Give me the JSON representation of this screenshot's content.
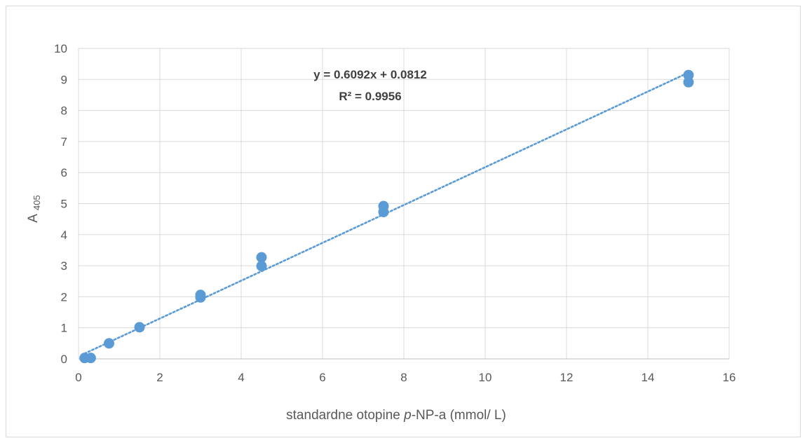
{
  "chart_data": {
    "type": "scatter",
    "title": "",
    "xlabel": {
      "before": "standardne otopine ",
      "italic": "p",
      "after": "-NP-a (mmol/ L)"
    },
    "ylabel": {
      "main": "A",
      "subscript": "405"
    },
    "xlim": [
      0,
      16
    ],
    "ylim": [
      0,
      10
    ],
    "x_ticks": [
      0,
      2,
      4,
      6,
      8,
      10,
      12,
      14,
      16
    ],
    "y_ticks": [
      0,
      1,
      2,
      3,
      4,
      5,
      6,
      7,
      8,
      9,
      10
    ],
    "grid": true,
    "series": [
      {
        "color": "#5b9bd5",
        "points": [
          {
            "x": 0.15,
            "y": 0.03
          },
          {
            "x": 0.3,
            "y": 0.03
          },
          {
            "x": 0.75,
            "y": 0.5
          },
          {
            "x": 1.5,
            "y": 1.02
          },
          {
            "x": 3.0,
            "y": 2.06
          },
          {
            "x": 3.0,
            "y": 1.98
          },
          {
            "x": 4.5,
            "y": 3.27
          },
          {
            "x": 4.5,
            "y": 2.99
          },
          {
            "x": 7.5,
            "y": 4.92
          },
          {
            "x": 7.5,
            "y": 4.73
          },
          {
            "x": 15.0,
            "y": 9.14
          },
          {
            "x": 15.0,
            "y": 8.91
          }
        ]
      }
    ],
    "trendline": {
      "type": "linear",
      "style": "dotted",
      "color": "#5b9bd5",
      "slope": 0.6092,
      "intercept": 0.0812,
      "x_range": [
        0.15,
        15.0
      ],
      "equation": "y = 0.6092x + 0.0812",
      "r_squared": "R² = 0.9956"
    }
  }
}
